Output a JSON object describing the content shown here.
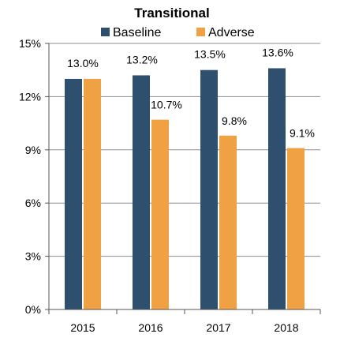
{
  "chart_data": {
    "type": "bar",
    "title": "Transitional",
    "xlabel": "",
    "ylabel": "",
    "categories": [
      "2015",
      "2016",
      "2017",
      "2018"
    ],
    "series": [
      {
        "name": "Baseline",
        "values": [
          13.0,
          13.2,
          13.5,
          13.6
        ],
        "labels": [
          "13.0%",
          "13.2%",
          "13.5%",
          "13.6%"
        ],
        "color": "#2e4f6e"
      },
      {
        "name": "Adverse",
        "values": [
          13.0,
          10.7,
          9.8,
          9.1
        ],
        "labels": [
          "13.0%",
          "10.7%",
          "9.8%",
          "9.1%"
        ],
        "color": "#f0a144"
      }
    ],
    "ylim": [
      0,
      15
    ],
    "yticks": [
      0,
      3,
      6,
      9,
      12,
      15
    ],
    "ytick_labels": [
      "0%",
      "3%",
      "6%",
      "9%",
      "12%",
      "15%"
    ],
    "grid": true,
    "legend": "top-center"
  }
}
